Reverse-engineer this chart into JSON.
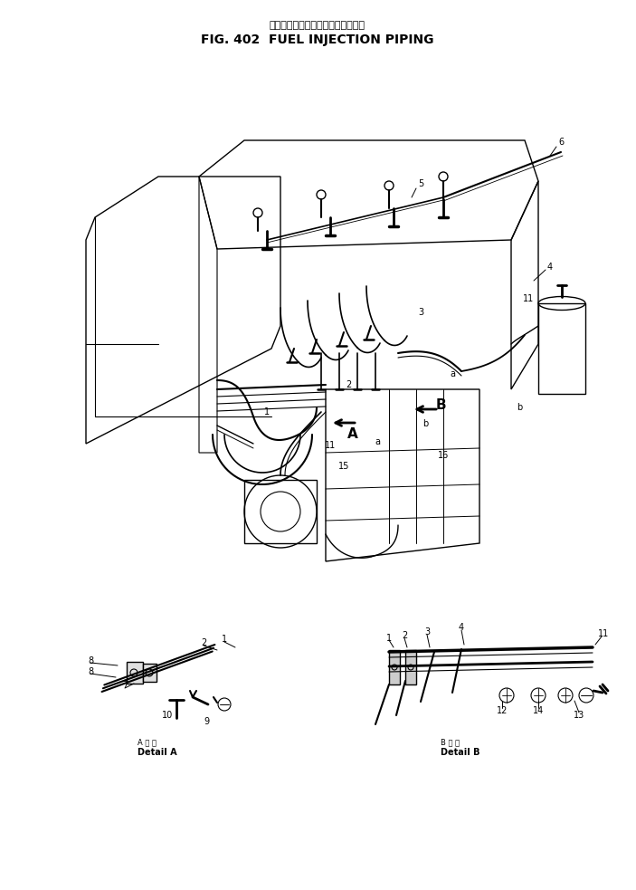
{
  "title_japanese": "フェルインジェクションパイピング",
  "title_english": "FIG. 402  FUEL INJECTION PIPING",
  "bg_color": "#ffffff",
  "fig_width": 7.03,
  "fig_height": 9.83,
  "detail_a_label_line1": "A 詳 細",
  "detail_a_label_line2": "Detail A",
  "detail_b_label_line1": "B 詳 細",
  "detail_b_label_line2": "Detail B"
}
